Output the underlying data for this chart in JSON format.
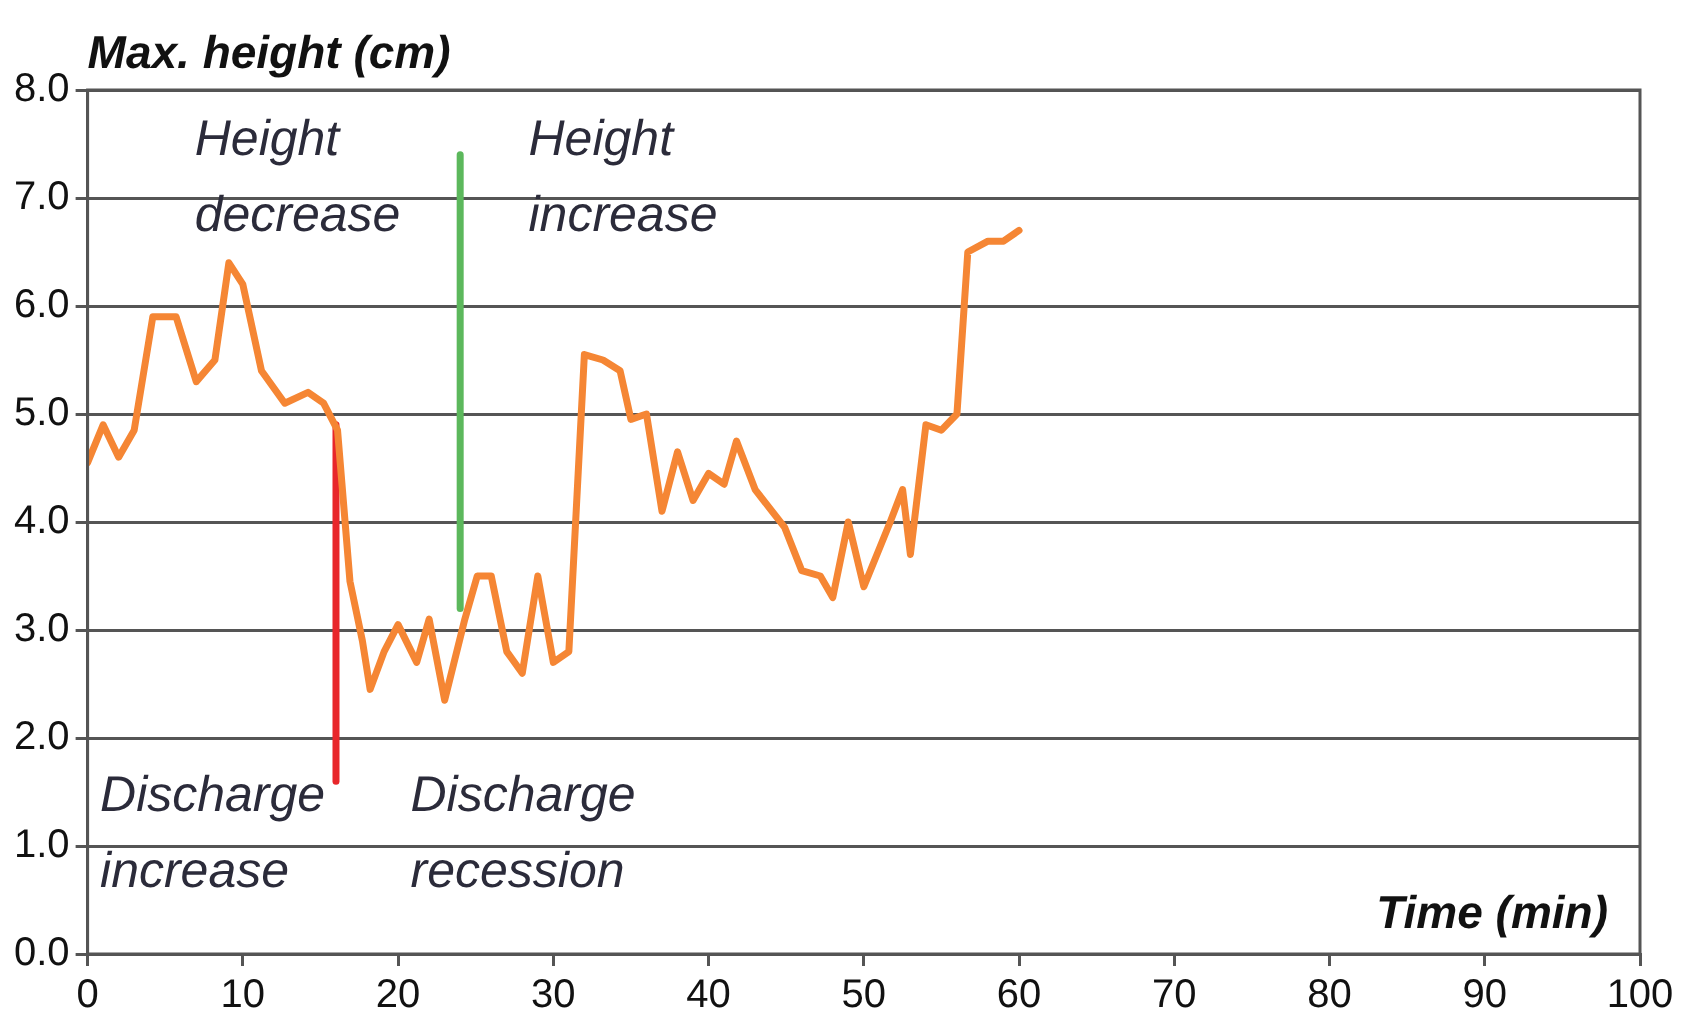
{
  "chart_data": {
    "type": "line",
    "ylabel": "Max. height (cm)",
    "xlabel": "Time (min)",
    "xlim": [
      0,
      100
    ],
    "xticks": [
      0,
      10,
      20,
      30,
      40,
      50,
      60,
      70,
      80,
      90,
      100
    ],
    "ylim": [
      0,
      8
    ],
    "yticks": [
      {
        "value": 0,
        "label": "0.0"
      },
      {
        "value": 1,
        "label": "1.0"
      },
      {
        "value": 2,
        "label": "2.0"
      },
      {
        "value": 3,
        "label": "3.0"
      },
      {
        "value": 4,
        "label": "4.0"
      },
      {
        "value": 5,
        "label": "5.0"
      },
      {
        "value": 6,
        "label": "6.0"
      },
      {
        "value": 7,
        "label": "7.0"
      },
      {
        "value": 8,
        "label": "8.0"
      }
    ],
    "grid": "y",
    "legend": false,
    "marker": "none",
    "line_style": "solid",
    "series": [
      {
        "color": "#f58634",
        "x": [
          0,
          1,
          2,
          3,
          4.2,
          5.7,
          7,
          8.2,
          9.1,
          10,
          11.2,
          12.7,
          14.2,
          15.2,
          16.1,
          16.9,
          17.7,
          18.2,
          19.1,
          20,
          21.2,
          22,
          23,
          24.3,
          25.1,
          26,
          27,
          28,
          29,
          30,
          31,
          32,
          33.2,
          34.3,
          35,
          36,
          37,
          38,
          39,
          40,
          41,
          41.8,
          43,
          44.9,
          46,
          47.2,
          48,
          49,
          50,
          51.7,
          52.5,
          53,
          54,
          55,
          56,
          56.7,
          58,
          59,
          60
        ],
        "values": [
          4.55,
          4.9,
          4.6,
          4.85,
          5.9,
          5.9,
          5.3,
          5.5,
          6.4,
          6.2,
          5.4,
          5.1,
          5.2,
          5.1,
          4.85,
          3.45,
          2.9,
          2.45,
          2.8,
          3.05,
          2.7,
          3.1,
          2.35,
          3.1,
          3.5,
          3.5,
          2.8,
          2.6,
          3.5,
          2.7,
          2.8,
          5.55,
          5.5,
          5.4,
          4.95,
          5,
          4.1,
          4.65,
          4.2,
          4.45,
          4.35,
          4.75,
          4.3,
          3.95,
          3.55,
          3.5,
          3.3,
          4,
          3.4,
          4,
          4.3,
          3.7,
          4.9,
          4.85,
          5,
          6.5,
          6.6,
          6.6,
          6.7
        ]
      },
      {
        "color": "#e8262a",
        "x": [
          16,
          16
        ],
        "values": [
          1.6,
          4.9
        ]
      },
      {
        "color": "#5cb85c",
        "x": [
          24,
          24
        ],
        "values": [
          3.2,
          7.4
        ]
      }
    ],
    "annotations": [
      "Height\ndecrease",
      "Height\nincrease",
      "Discharge\nincrease",
      "Discharge\nrecession"
    ]
  }
}
